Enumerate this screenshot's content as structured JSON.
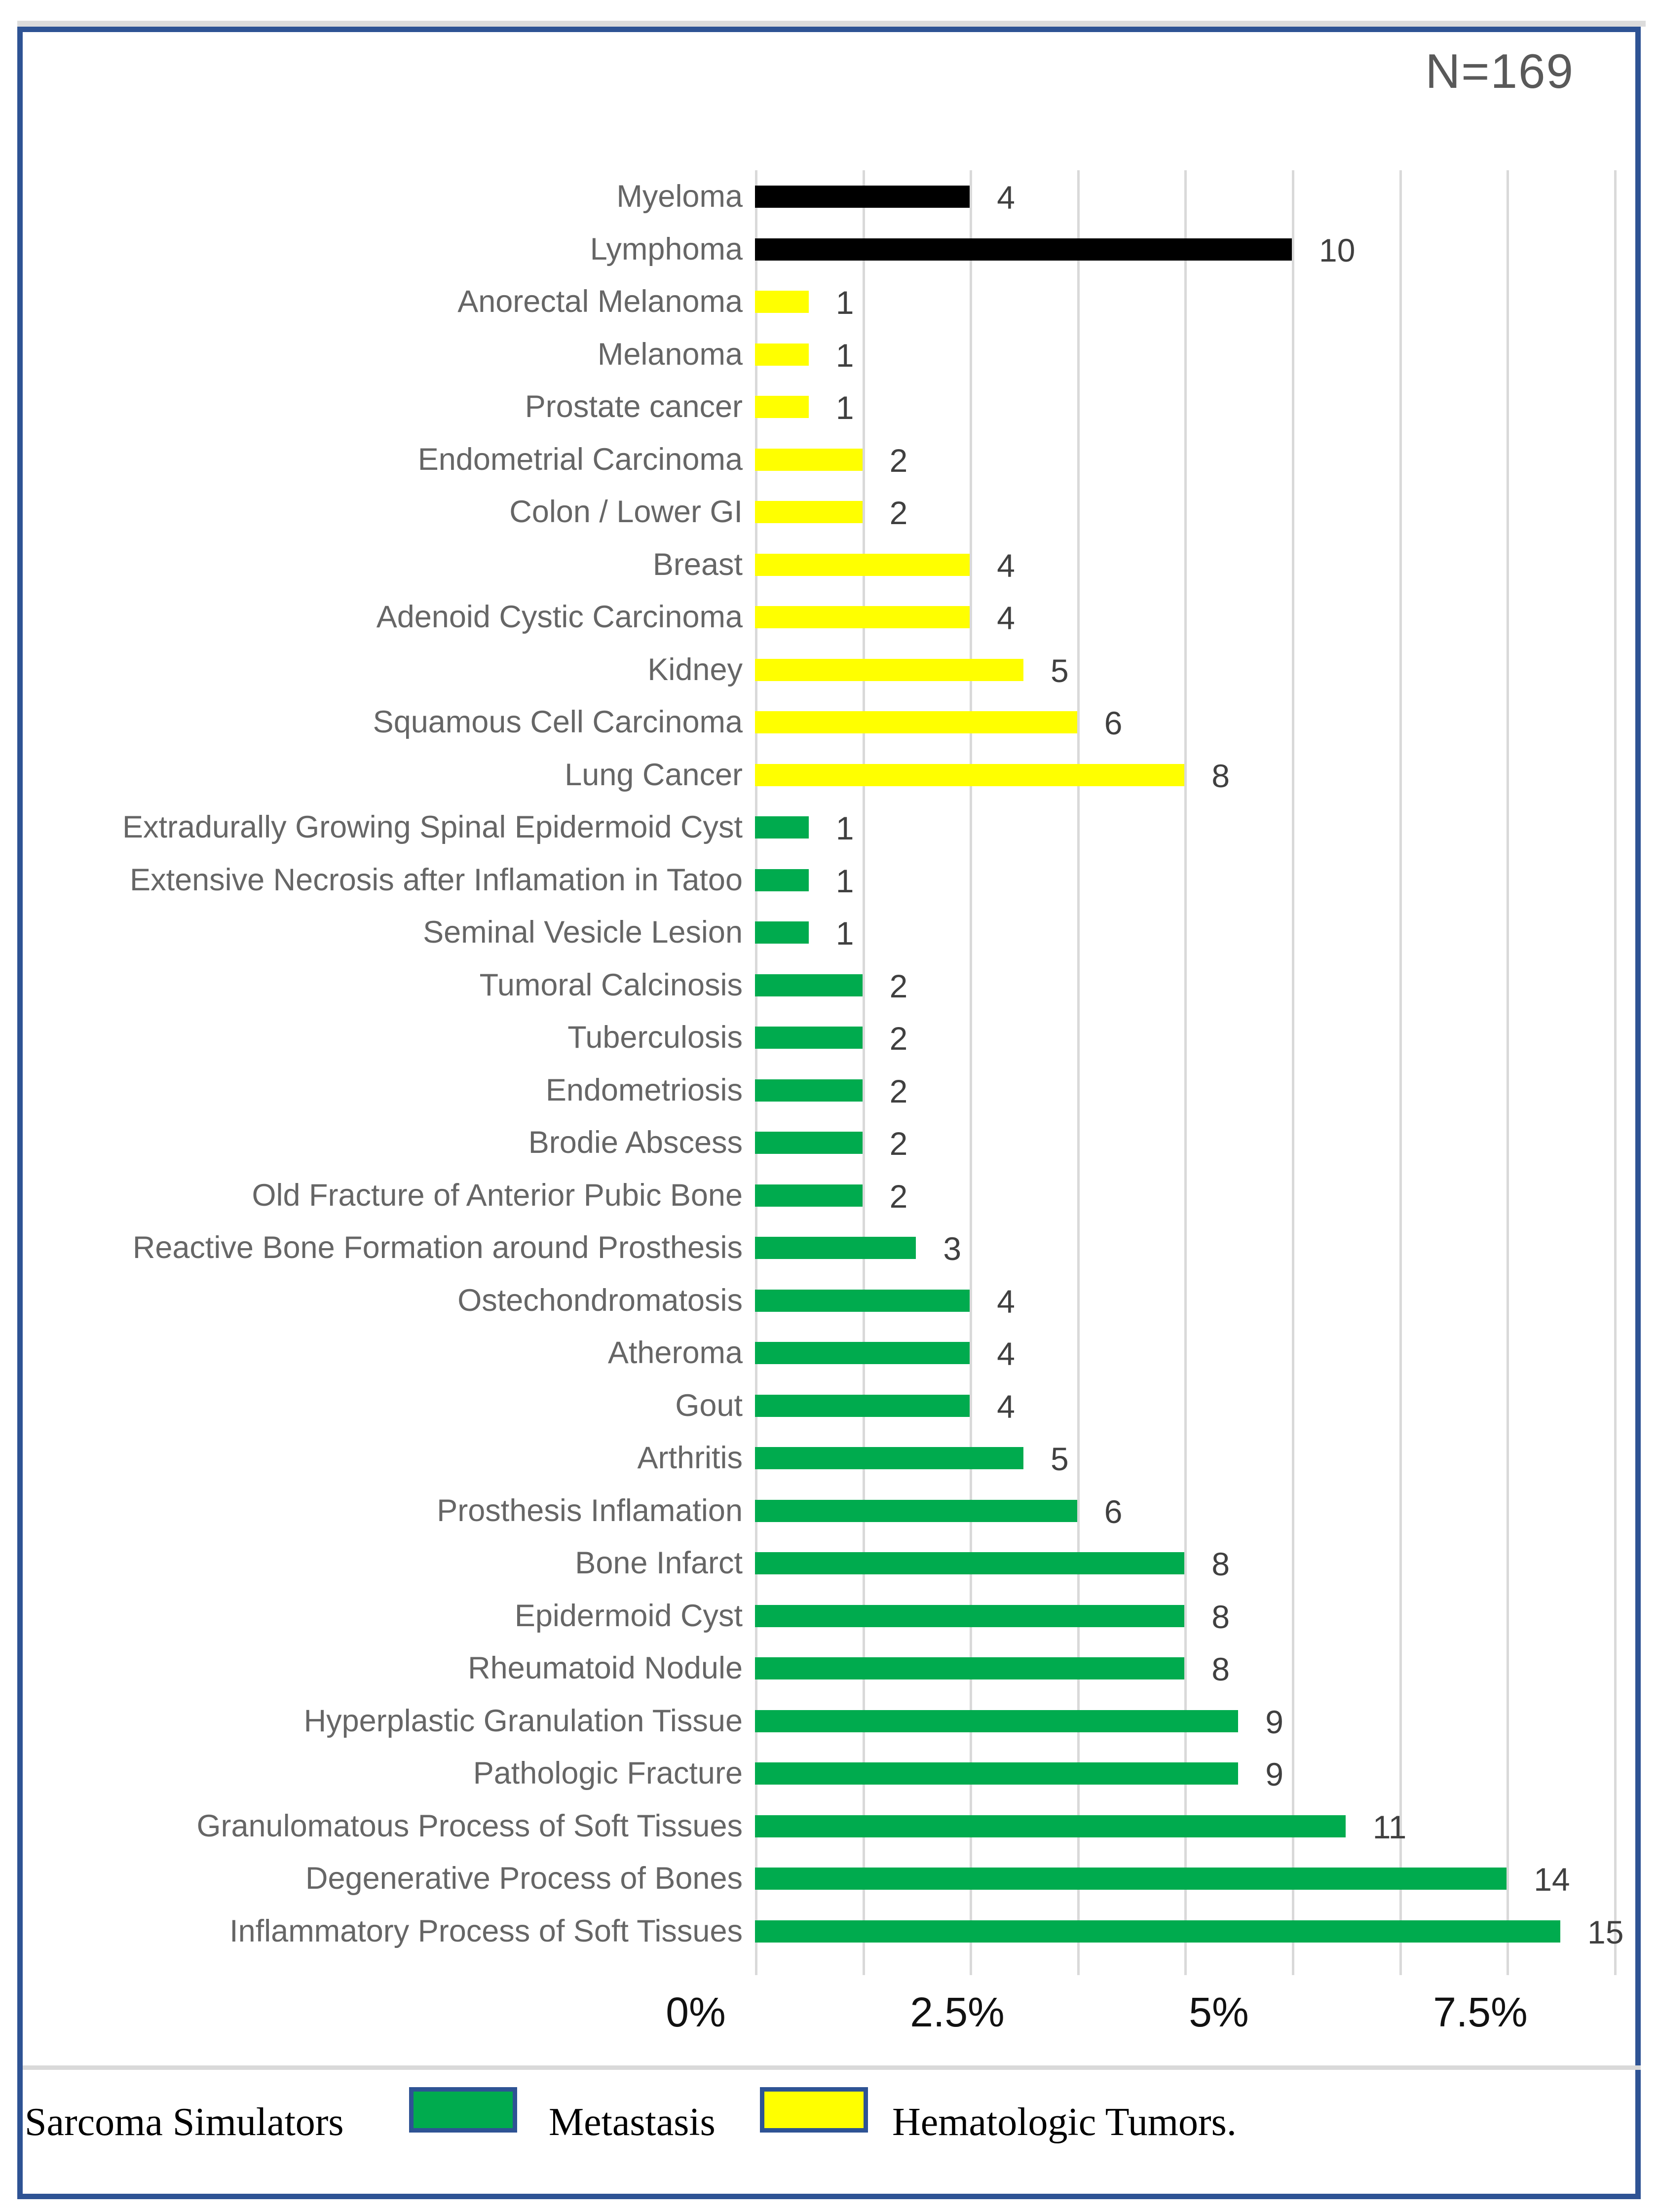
{
  "figure": {
    "sample_size_label": "N=169"
  },
  "chart_data": {
    "type": "bar",
    "orientation": "horizontal",
    "title": "N=169",
    "total_n": 169,
    "categories": [
      "Myeloma",
      "Lymphoma",
      "Anorectal Melanoma",
      "Melanoma",
      "Prostate cancer",
      "Endometrial Carcinoma",
      "Colon / Lower GI",
      "Breast",
      "Adenoid Cystic Carcinoma",
      "Kidney",
      "Squamous Cell Carcinoma",
      "Lung Cancer",
      "Extradurally Growing Spinal Epidermoid Cyst",
      "Extensive Necrosis after Inflamation in Tatoo",
      "Seminal Vesicle Lesion",
      "Tumoral Calcinosis",
      "Tuberculosis",
      "Endometriosis",
      "Brodie Abscess",
      "Old Fracture of Anterior Pubic Bone",
      "Reactive Bone Formation around Prosthesis",
      "Ostechondromatosis",
      "Atheroma",
      "Gout",
      "Arthritis",
      "Prosthesis Inflamation",
      "Bone Infarct",
      "Epidermoid Cyst",
      "Rheumatoid Nodule",
      "Hyperplastic Granulation Tissue",
      "Pathologic Fracture",
      "Granulomatous Process of Soft Tissues",
      "Degenerative Process of Bones",
      "Inflammatory Process of Soft Tissues"
    ],
    "values": [
      4,
      10,
      1,
      1,
      1,
      2,
      2,
      4,
      4,
      5,
      6,
      8,
      1,
      1,
      1,
      2,
      2,
      2,
      2,
      2,
      3,
      4,
      4,
      4,
      5,
      6,
      8,
      8,
      8,
      9,
      9,
      11,
      14,
      15
    ],
    "groups": [
      "hematologic",
      "hematologic",
      "metastasis",
      "metastasis",
      "metastasis",
      "metastasis",
      "metastasis",
      "metastasis",
      "metastasis",
      "metastasis",
      "metastasis",
      "metastasis",
      "sarcoma-simulator",
      "sarcoma-simulator",
      "sarcoma-simulator",
      "sarcoma-simulator",
      "sarcoma-simulator",
      "sarcoma-simulator",
      "sarcoma-simulator",
      "sarcoma-simulator",
      "sarcoma-simulator",
      "sarcoma-simulator",
      "sarcoma-simulator",
      "sarcoma-simulator",
      "sarcoma-simulator",
      "sarcoma-simulator",
      "sarcoma-simulator",
      "sarcoma-simulator",
      "sarcoma-simulator",
      "sarcoma-simulator",
      "sarcoma-simulator",
      "sarcoma-simulator",
      "sarcoma-simulator",
      "sarcoma-simulator"
    ],
    "group_colors": {
      "hematologic": "#000000",
      "metastasis": "#ffff00",
      "sarcoma-simulator": "#00ab4e"
    },
    "x_axis": {
      "tick_labels": [
        "0%",
        "2.5%",
        "5%",
        "7.5%"
      ],
      "gridline_interval_counts": 2,
      "axis_range_counts": [
        0,
        16.5
      ],
      "grid": true
    },
    "legend": [
      {
        "label": "Sarcoma Simulators",
        "swatch_color": "#00ab4e"
      },
      {
        "label": "Metastasis",
        "swatch_color": "#ffff00"
      },
      {
        "label": "Hematologic Tumors.",
        "swatch_color": null
      }
    ],
    "legend_position": "bottom"
  },
  "colors": {
    "frame_blue": "#2e5394",
    "gridline_gray": "#d9d9d9",
    "category_text": "#666666",
    "value_text": "#404040",
    "title_text": "#595959",
    "axis_text": "#111111"
  }
}
